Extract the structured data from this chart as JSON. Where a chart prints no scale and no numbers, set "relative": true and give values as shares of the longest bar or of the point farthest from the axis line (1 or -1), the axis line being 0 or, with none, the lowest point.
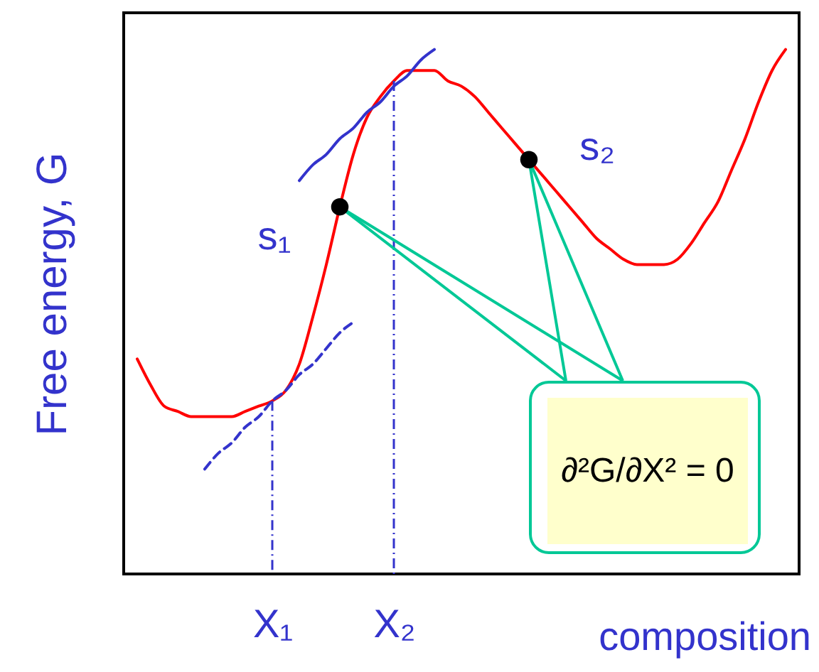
{
  "chart_data": {
    "type": "line",
    "relative": true,
    "xlabel": "composition",
    "ylabel": "Free energy, G",
    "tick_labels": "x",
    "categories": [
      null,
      null,
      null,
      null,
      null,
      null,
      null,
      null,
      null,
      null,
      "X₁",
      null,
      null,
      null,
      null,
      null,
      null,
      null,
      null,
      "X₂",
      null,
      null,
      null,
      null,
      null,
      null,
      null,
      null,
      null,
      null,
      null,
      null,
      null,
      null,
      null,
      null,
      null,
      null,
      null,
      null,
      null,
      null,
      null,
      null,
      null,
      null,
      null,
      null,
      null
    ],
    "series": [
      {
        "color": "#ff0000",
        "values": [
          0.41,
          0.36,
          0.32,
          0.31,
          0.3,
          0.3,
          0.3,
          0.3,
          0.31,
          0.32,
          0.33,
          0.35,
          0.4,
          0.49,
          0.59,
          0.7,
          0.8,
          0.87,
          0.91,
          0.94,
          0.96,
          0.96,
          0.96,
          0.94,
          0.93,
          0.91,
          0.88,
          0.85,
          0.82,
          0.79,
          0.76,
          0.73,
          0.7,
          0.67,
          0.64,
          0.62,
          0.6,
          0.59,
          0.59,
          0.59,
          0.6,
          0.63,
          0.67,
          0.71,
          0.77,
          0.83,
          0.9,
          0.96,
          1.0
        ]
      },
      {
        "type": "line",
        "color": "#3333cc",
        "line_style": "solid",
        "values": [
          null,
          null,
          null,
          null,
          null,
          null,
          null,
          null,
          null,
          null,
          null,
          null,
          0.75,
          0.78,
          0.8,
          0.83,
          0.85,
          0.88,
          0.9,
          0.93,
          0.95,
          0.98,
          1.0,
          null,
          null,
          null,
          null,
          null,
          null,
          null,
          null,
          null,
          null,
          null,
          null,
          null,
          null,
          null,
          null,
          null,
          null,
          null,
          null,
          null,
          null,
          null,
          null,
          null,
          null
        ]
      },
      {
        "type": "line",
        "color": "#3333cc",
        "line_style": "dashed",
        "values": [
          null,
          null,
          null,
          null,
          null,
          0.2,
          0.23,
          0.25,
          0.28,
          0.3,
          0.33,
          0.35,
          0.38,
          0.4,
          0.43,
          0.46,
          0.48,
          null,
          null,
          null,
          null,
          null,
          null,
          null,
          null,
          null,
          null,
          null,
          null,
          null,
          null,
          null,
          null,
          null,
          null,
          null,
          null,
          null,
          null,
          null,
          null,
          null,
          null,
          null,
          null,
          null,
          null,
          null,
          null
        ]
      },
      {
        "type": "scatter",
        "name": "s₁",
        "color": "#000000",
        "values": [
          null,
          null,
          null,
          null,
          null,
          null,
          null,
          null,
          null,
          null,
          null,
          null,
          null,
          null,
          null,
          0.7,
          null,
          null,
          null,
          null,
          null,
          null,
          null,
          null,
          null,
          null,
          null,
          null,
          null,
          null,
          null,
          null,
          null,
          null,
          null,
          null,
          null,
          null,
          null,
          null,
          null,
          null,
          null,
          null,
          null,
          null,
          null,
          null,
          null
        ]
      },
      {
        "type": "scatter",
        "name": "s₂",
        "color": "#000000",
        "values": [
          null,
          null,
          null,
          null,
          null,
          null,
          null,
          null,
          null,
          null,
          null,
          null,
          null,
          null,
          null,
          null,
          null,
          null,
          null,
          null,
          null,
          null,
          null,
          null,
          null,
          null,
          null,
          null,
          null,
          0.79,
          null,
          null,
          null,
          null,
          null,
          null,
          null,
          null,
          null,
          null,
          null,
          null,
          null,
          null,
          null,
          null,
          null,
          null,
          null
        ]
      }
    ],
    "ref_lines": [
      {
        "axis": "x",
        "value": "X₁",
        "color": "#3333cc",
        "line_style": "dashed"
      },
      {
        "axis": "x",
        "value": "X₂",
        "color": "#3333cc",
        "line_style": "dashed"
      }
    ],
    "annotations": [
      "∂²G/∂X² = 0"
    ]
  }
}
